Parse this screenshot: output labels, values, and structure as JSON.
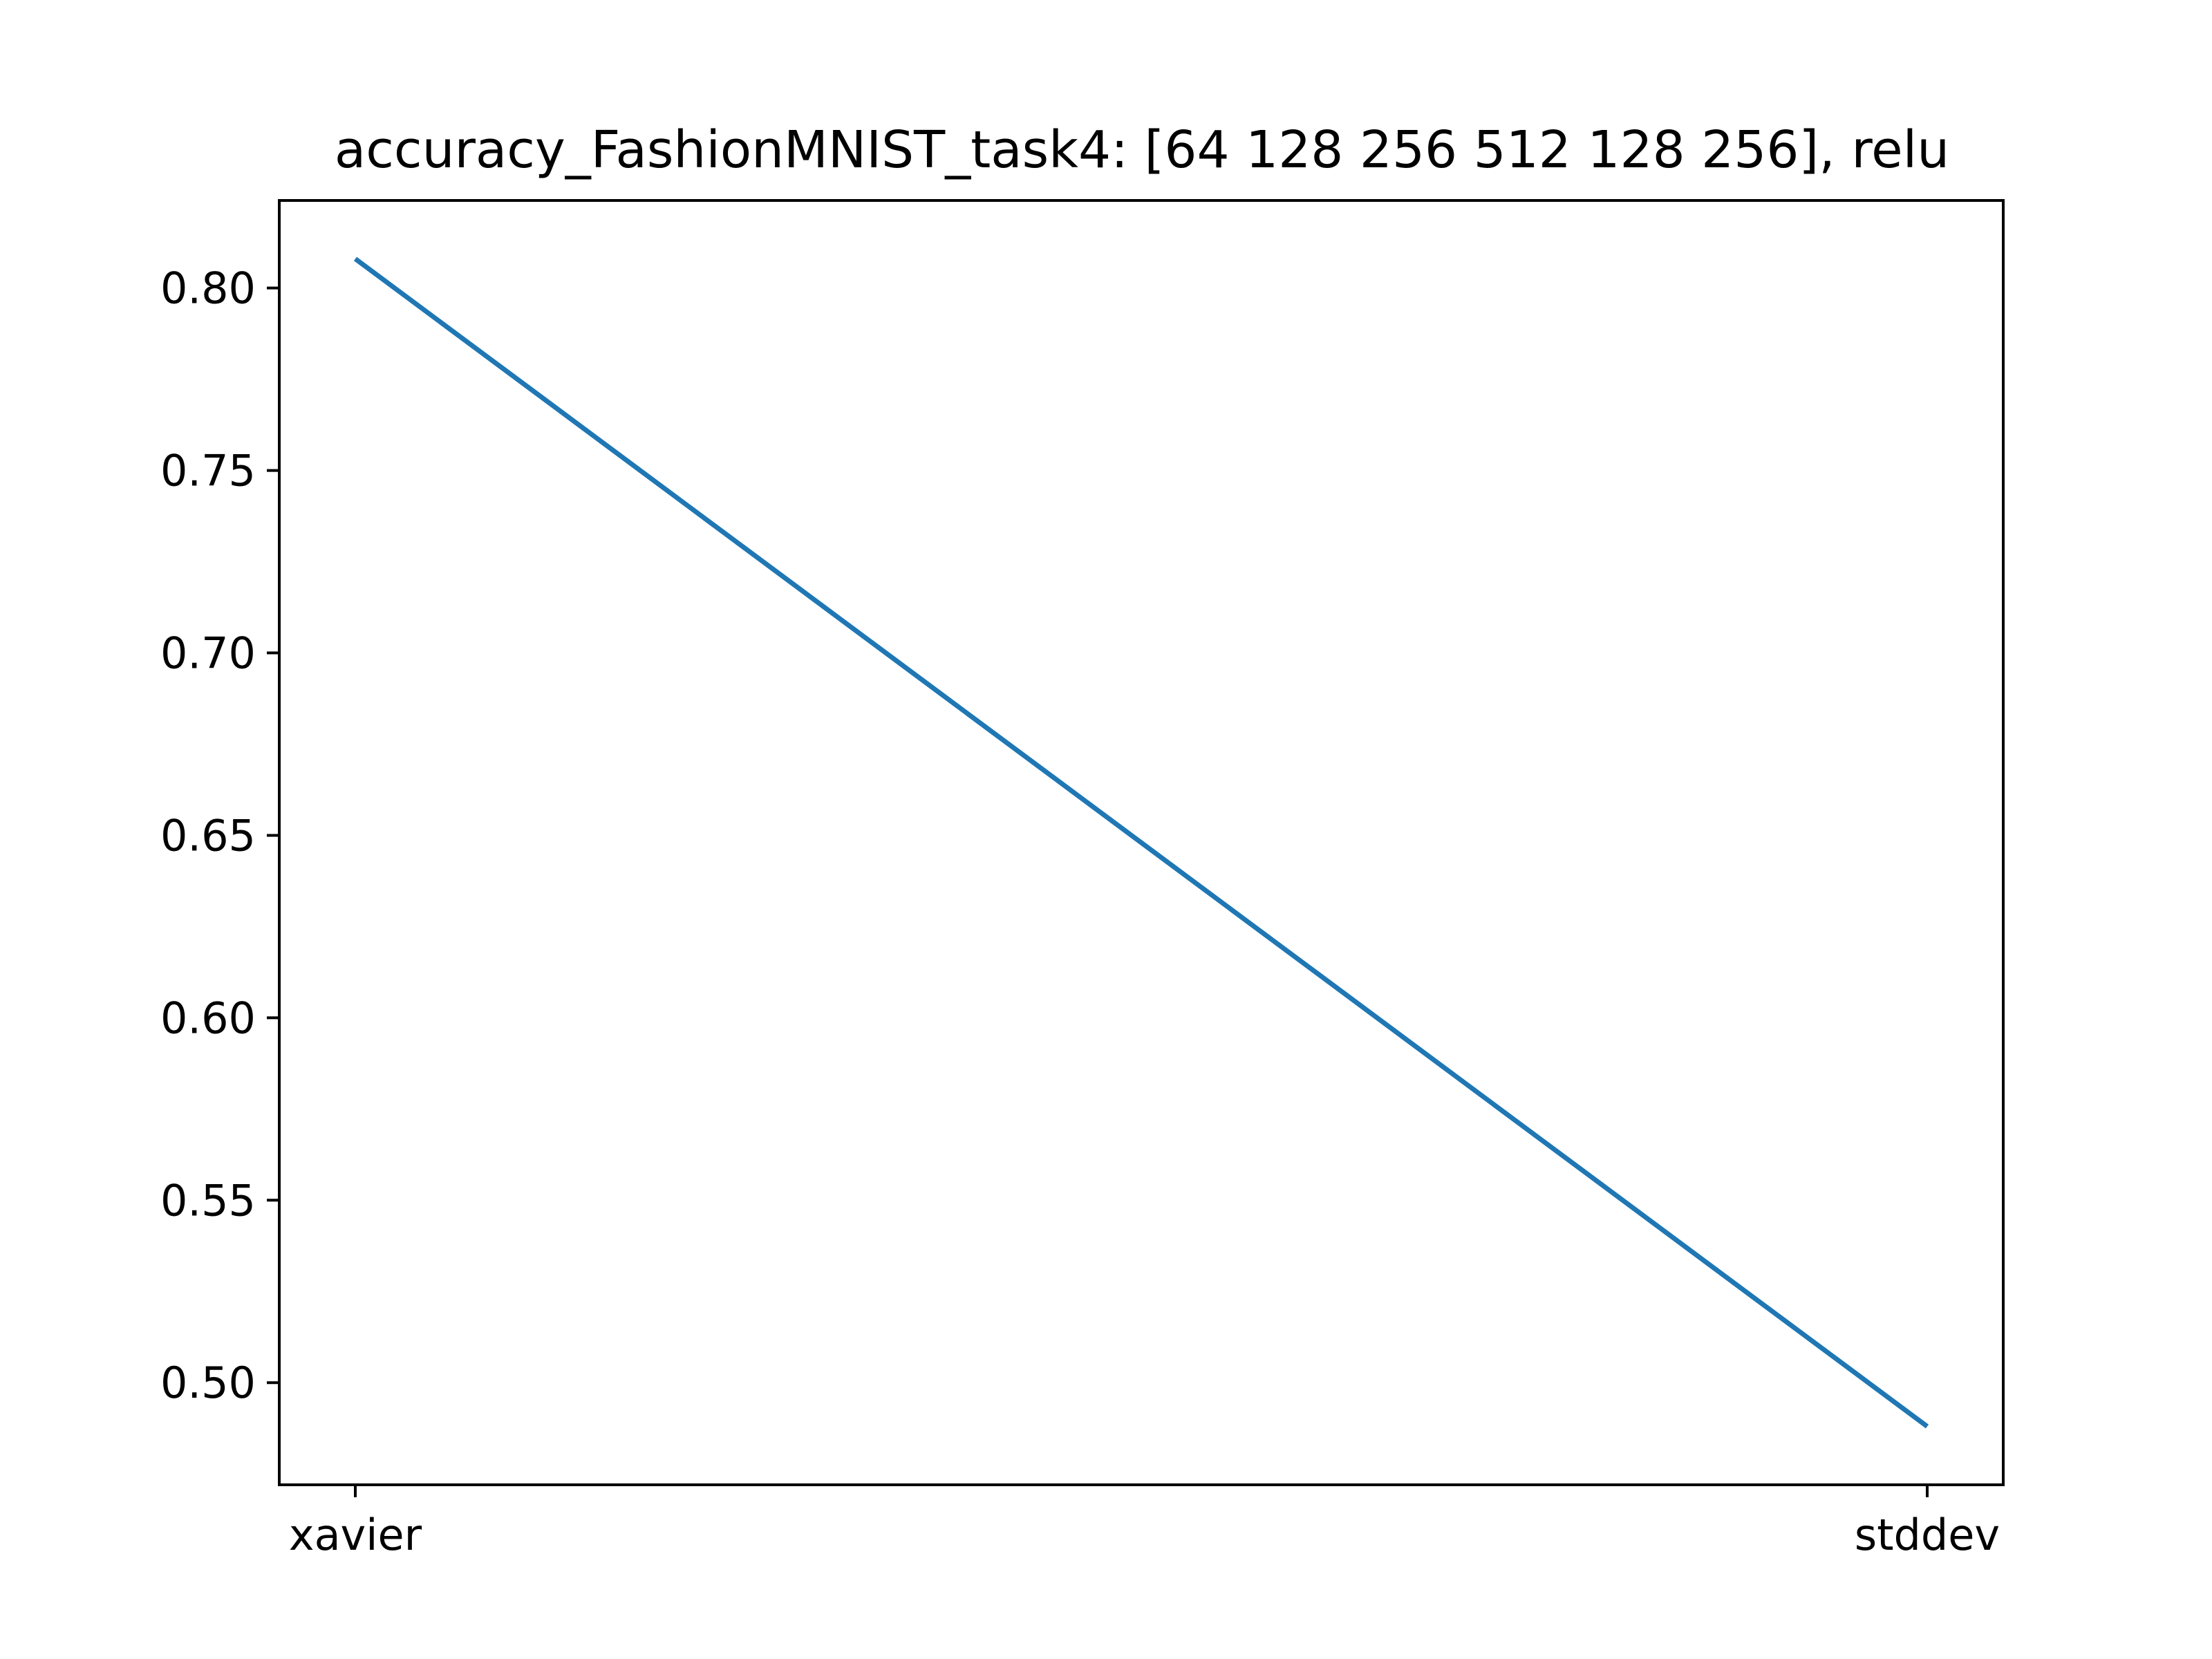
{
  "chart_data": {
    "type": "line",
    "title": "accuracy_FashionMNIST_task4: [64 128 256 512 128 256], relu",
    "xlabel": "",
    "ylabel": "",
    "categories": [
      "xavier",
      "stddev"
    ],
    "series": [
      {
        "values": [
          0.808,
          0.488
        ],
        "color": "#1f77b4"
      }
    ],
    "ylim": [
      0.472,
      0.824
    ],
    "yticks": [
      0.5,
      0.55,
      0.6,
      0.65,
      0.7,
      0.75,
      0.8
    ],
    "ytick_labels": [
      "0.50",
      "0.55",
      "0.60",
      "0.65",
      "0.70",
      "0.75",
      "0.80"
    ],
    "grid": false,
    "legend": "none"
  }
}
